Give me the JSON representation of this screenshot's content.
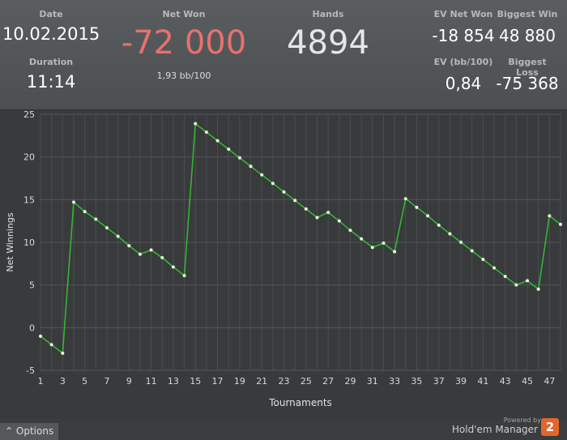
{
  "header": {
    "date_label": "Date",
    "date_value": "10.02.2015",
    "duration_label": "Duration",
    "duration_value": "11:14",
    "net_won_label": "Net Won",
    "net_won_value": "-72 000",
    "bb_value": "1,93 bb/100",
    "hands_label": "Hands",
    "hands_value": "4894",
    "ev_net_won_label": "EV Net Won",
    "ev_net_won_value": "-18 854",
    "biggest_win_label": "Biggest Win",
    "biggest_win_value": "48 880",
    "ev_bb_label": "EV (bb/100)",
    "ev_bb_value": "0,84",
    "biggest_loss_label": "Biggest Loss",
    "biggest_loss_value": "-75 368"
  },
  "colors": {
    "net_won_negative": "#e8716b",
    "line": "#33b633",
    "point": "#e8f7d8"
  },
  "chart_data": {
    "type": "line",
    "title": "",
    "xlabel": "Tournaments",
    "ylabel": "Net Winnings",
    "xlim": [
      1,
      48
    ],
    "ylim": [
      -5,
      25
    ],
    "yticks": [
      -5,
      0,
      5,
      10,
      15,
      20,
      25
    ],
    "xticks": [
      1,
      3,
      5,
      7,
      9,
      11,
      13,
      15,
      17,
      19,
      21,
      23,
      25,
      27,
      29,
      31,
      33,
      35,
      37,
      39,
      41,
      43,
      45,
      47
    ],
    "grid": true,
    "legend": "none",
    "x": [
      1,
      2,
      3,
      4,
      5,
      6,
      7,
      8,
      9,
      10,
      11,
      12,
      13,
      14,
      15,
      16,
      17,
      18,
      19,
      20,
      21,
      22,
      23,
      24,
      25,
      26,
      27,
      28,
      29,
      30,
      31,
      32,
      33,
      34,
      35,
      36,
      37,
      38,
      39,
      40,
      41,
      42,
      43,
      44,
      45,
      46,
      47,
      48
    ],
    "y": [
      -1,
      -2,
      -3,
      14.7,
      13.6,
      12.7,
      11.7,
      10.7,
      9.6,
      8.6,
      9.1,
      8.2,
      7.1,
      6.1,
      23.9,
      22.9,
      21.9,
      20.9,
      19.9,
      18.9,
      17.9,
      16.9,
      15.9,
      14.9,
      13.9,
      12.9,
      13.5,
      12.5,
      11.4,
      10.4,
      9.4,
      9.9,
      8.9,
      15.1,
      14.1,
      13.1,
      12,
      11,
      10,
      9,
      8,
      7,
      6,
      5,
      5.5,
      4.5,
      13.1,
      12.1
    ]
  },
  "footer": {
    "options_label": "Options",
    "powered_label": "Powered by",
    "brand_label": "Hold'em Manager",
    "brand_number": "2"
  }
}
